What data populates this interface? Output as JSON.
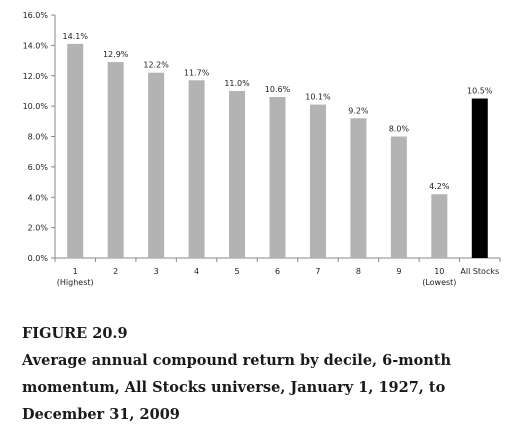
{
  "chart_data": {
    "type": "bar",
    "categories": [
      "1",
      "2",
      "3",
      "4",
      "5",
      "6",
      "7",
      "8",
      "9",
      "10",
      "All Stocks"
    ],
    "category_sublabels": [
      "(Highest)",
      "",
      "",
      "",
      "",
      "",
      "",
      "",
      "",
      "(Lowest)",
      ""
    ],
    "values": [
      14.1,
      12.9,
      12.2,
      11.7,
      11.0,
      10.6,
      10.1,
      9.2,
      8.0,
      4.2,
      10.5
    ],
    "value_labels": [
      "14.1%",
      "12.9%",
      "12.2%",
      "11.7%",
      "11.0%",
      "10.6%",
      "10.1%",
      "9.2%",
      "8.0%",
      "4.2%",
      "10.5%"
    ],
    "ylim": [
      0,
      16
    ],
    "y_ticks": [
      "0.0%",
      "2.0%",
      "4.0%",
      "6.0%",
      "8.0%",
      "10.0%",
      "12.0%",
      "14.0%",
      "16.0%"
    ],
    "y_tick_values": [
      0,
      2,
      4,
      6,
      8,
      10,
      12,
      14,
      16
    ],
    "grid": false,
    "colors": {
      "decile_bar": "#b3b3b3",
      "all_stocks_bar": "#000000",
      "axis": "#888888"
    },
    "title": "",
    "xlabel": "",
    "ylabel": ""
  },
  "caption": {
    "figure_number": "FIGURE 20.9",
    "lines": [
      "Average annual compound return by decile, 6-month",
      "momentum, All Stocks universe, January 1, 1927, to",
      "December 31, 2009"
    ]
  }
}
